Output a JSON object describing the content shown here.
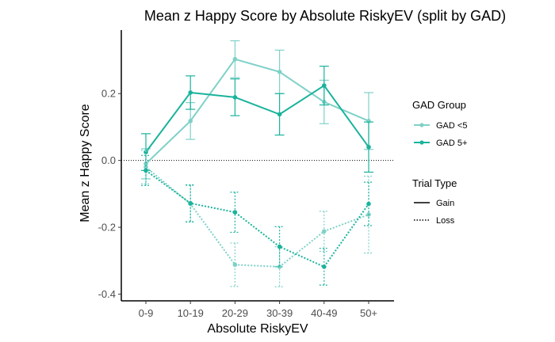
{
  "chart_data": {
    "type": "line",
    "title": "Mean z Happy Score by Absolute RiskyEV (split by GAD)",
    "xlabel": "Absolute RiskyEV",
    "ylabel": "Mean z Happy Score",
    "categories": [
      "0-9",
      "10-19",
      "20-29",
      "30-39",
      "40-49",
      "50+"
    ],
    "y_ticks": [
      0.2,
      0.0,
      -0.2,
      -0.4
    ],
    "y_tick_labels": [
      "0.2",
      "0.0",
      "-0.2",
      "-0.4"
    ],
    "ylim": [
      -0.42,
      0.39
    ],
    "reference_line": {
      "y": 0,
      "style": "dotted"
    },
    "grid": false,
    "legend": {
      "placement": "right",
      "color_title": "GAD Group",
      "color_entries": [
        {
          "label": "GAD <5",
          "color": "#7fd1c8"
        },
        {
          "label": "GAD 5+",
          "color": "#1ab39c"
        }
      ],
      "linetype_title": "Trial Type",
      "linetype_entries": [
        {
          "label": "Gain",
          "style": "solid"
        },
        {
          "label": "Loss",
          "style": "dotted"
        }
      ]
    },
    "series": [
      {
        "name": "GAD <5",
        "trial_type": "Gain",
        "color": "#7fd1c8",
        "style": "solid",
        "values": [
          -0.01,
          0.118,
          0.303,
          0.265,
          0.175,
          0.118
        ],
        "error": [
          0.045,
          0.055,
          0.055,
          0.065,
          0.065,
          0.085
        ]
      },
      {
        "name": "GAD 5+",
        "trial_type": "Gain",
        "color": "#1ab39c",
        "style": "solid",
        "values": [
          0.025,
          0.203,
          0.189,
          0.138,
          0.224,
          0.04
        ],
        "error": [
          0.055,
          0.05,
          0.055,
          0.062,
          0.058,
          0.075
        ]
      },
      {
        "name": "GAD <5",
        "trial_type": "Loss",
        "color": "#7fd1c8",
        "style": "dotted",
        "values": [
          -0.02,
          -0.13,
          -0.312,
          -0.318,
          -0.212,
          -0.162
        ],
        "error": [
          0.05,
          0.055,
          0.065,
          0.06,
          0.06,
          0.115
        ]
      },
      {
        "name": "GAD 5+",
        "trial_type": "Loss",
        "color": "#1ab39c",
        "style": "dotted",
        "values": [
          -0.03,
          -0.128,
          -0.155,
          -0.258,
          -0.318,
          -0.13
        ],
        "error": [
          0.045,
          0.055,
          0.06,
          0.06,
          0.055,
          0.065
        ]
      }
    ]
  }
}
